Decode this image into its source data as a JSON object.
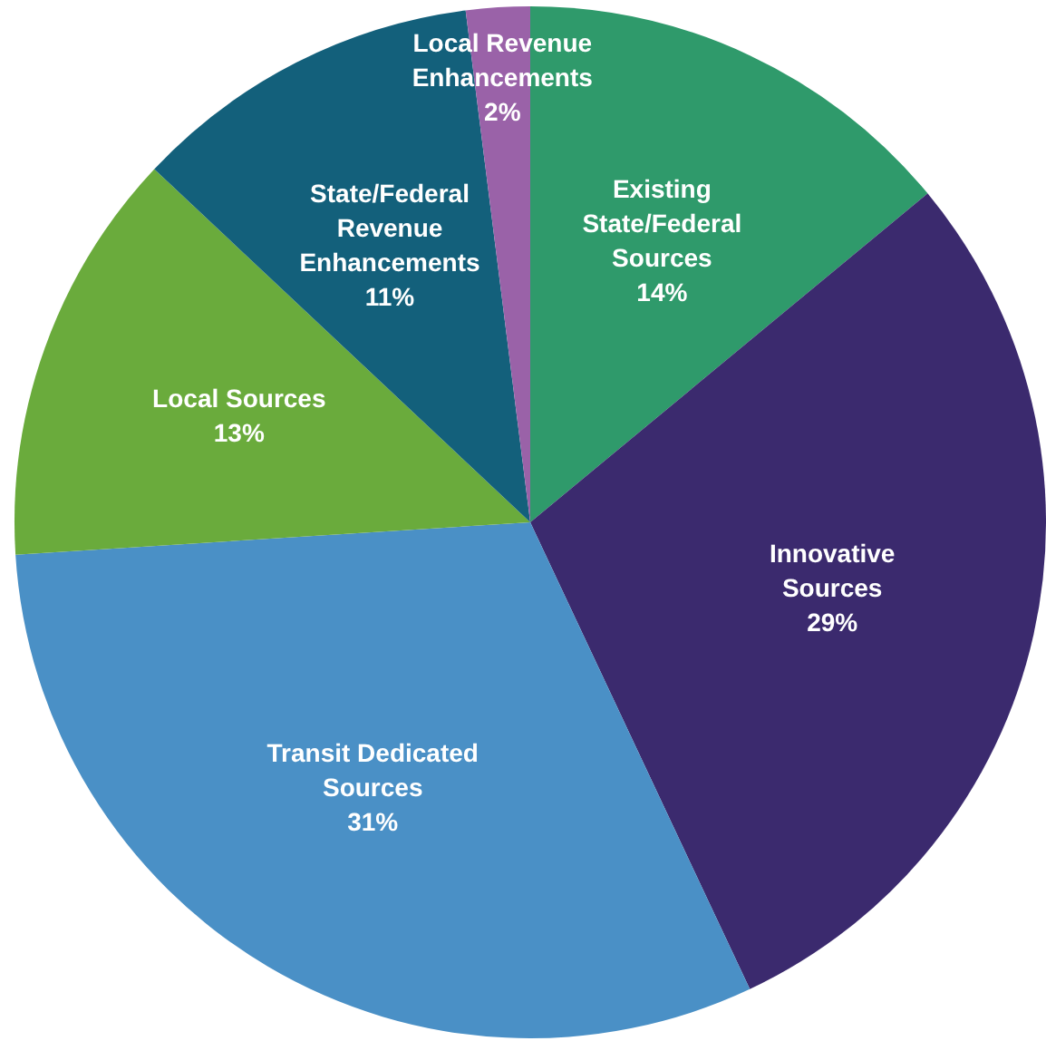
{
  "chart_data": {
    "type": "pie",
    "categories": [
      "Existing State/Federal Sources",
      "Innovative Sources",
      "Transit Dedicated Sources",
      "Local Sources",
      "State/Federal Revenue Enhancements",
      "Local Revenue Enhancements"
    ],
    "values": [
      14,
      29,
      31,
      13,
      11,
      2
    ],
    "colors": [
      "#2f9a6b",
      "#3b2a6e",
      "#4a90c6",
      "#6aab3c",
      "#13607b",
      "#9a62a8"
    ],
    "value_labels": [
      "14%",
      "29%",
      "31%",
      "13%",
      "11%",
      "2%"
    ],
    "legend": false
  }
}
